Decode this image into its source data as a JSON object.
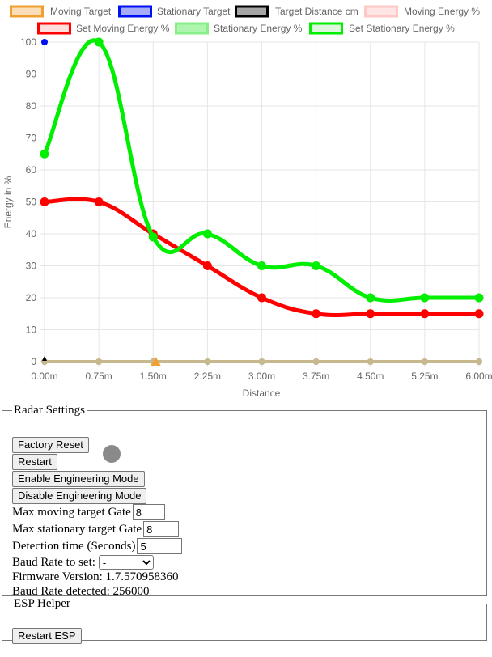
{
  "chart_data": {
    "type": "line",
    "ylabel": "Energy in %",
    "xlabel": "Distance",
    "categories": [
      "0.00m",
      "0.75m",
      "1.50m",
      "2.25m",
      "3.00m",
      "3.75m",
      "4.50m",
      "5.25m",
      "6.00m"
    ],
    "ylim": [
      0,
      100
    ],
    "yticks": [
      0,
      10,
      20,
      30,
      40,
      50,
      60,
      70,
      80,
      90,
      100
    ],
    "grid": true,
    "legend_position": "top",
    "series": [
      {
        "name": "Moving Target",
        "border": "#f0a030",
        "fill": "rgba(240,160,48,0.35)",
        "points": [],
        "marker": "triangle"
      },
      {
        "name": "Stationary Target",
        "border": "#0010f0",
        "fill": "rgba(0,16,240,0.35)",
        "points": [
          [
            0,
            100
          ]
        ],
        "marker": "circle"
      },
      {
        "name": "Target Distance cm",
        "border": "#000000",
        "fill": "rgba(0,0,0,0.35)",
        "points": [
          [
            0,
            1
          ]
        ],
        "marker": "triangle"
      },
      {
        "name": "Moving Energy %",
        "border": "#ffc8c4",
        "fill": "rgba(255,200,196,0.45)",
        "values": [
          0,
          0,
          0,
          0,
          0,
          0,
          0,
          0,
          0
        ],
        "marker": "circle"
      },
      {
        "name": "Set Moving Energy %",
        "border": "#ff0000",
        "fill": "rgba(255,200,196,0.6)",
        "values": [
          50,
          50,
          40,
          30,
          20,
          15,
          15,
          15,
          15
        ],
        "marker": "circle"
      },
      {
        "name": "Stationary Energy %",
        "border": "#88ee88",
        "fill": "rgba(120,240,120,0.6)",
        "values": [
          0,
          0,
          0,
          0,
          0,
          0,
          0,
          0,
          0
        ],
        "marker": "circle"
      },
      {
        "name": "Set Stationary Energy %",
        "border": "#00ee00",
        "fill": "rgba(200,240,200,0.6)",
        "values": [
          65,
          100,
          39,
          40,
          30,
          30,
          20,
          20,
          20
        ],
        "marker": "circle"
      }
    ],
    "baseline_color": "#c8b890",
    "moving_target_marker": {
      "x": 2.05,
      "y": 0,
      "color": "#f0a030"
    }
  },
  "radar_settings": {
    "legend": "Radar Settings",
    "factory_reset_label": "Factory Reset",
    "restart_label": "Restart",
    "status_color": "#8a8a8a",
    "enable_engineering_label": "Enable Engineering Mode",
    "disable_engineering_label": "Disable Engineering Mode",
    "max_moving_gate_label": "Max moving target Gate",
    "max_moving_gate_value": "8",
    "max_stationary_gate_label": "Max stationary target Gate",
    "max_stationary_gate_value": "8",
    "detection_time_label": "Detection time (Seconds)",
    "detection_time_value": "5",
    "baud_rate_label": "Baud Rate to set:",
    "baud_rate_selected": "-",
    "firmware_label": "Firmware Version: 1.7.570958360",
    "baud_detected_label": "Baud Rate detected: 256000"
  },
  "esp_helper": {
    "legend": "ESP Helper",
    "restart_esp_label": "Restart ESP"
  }
}
